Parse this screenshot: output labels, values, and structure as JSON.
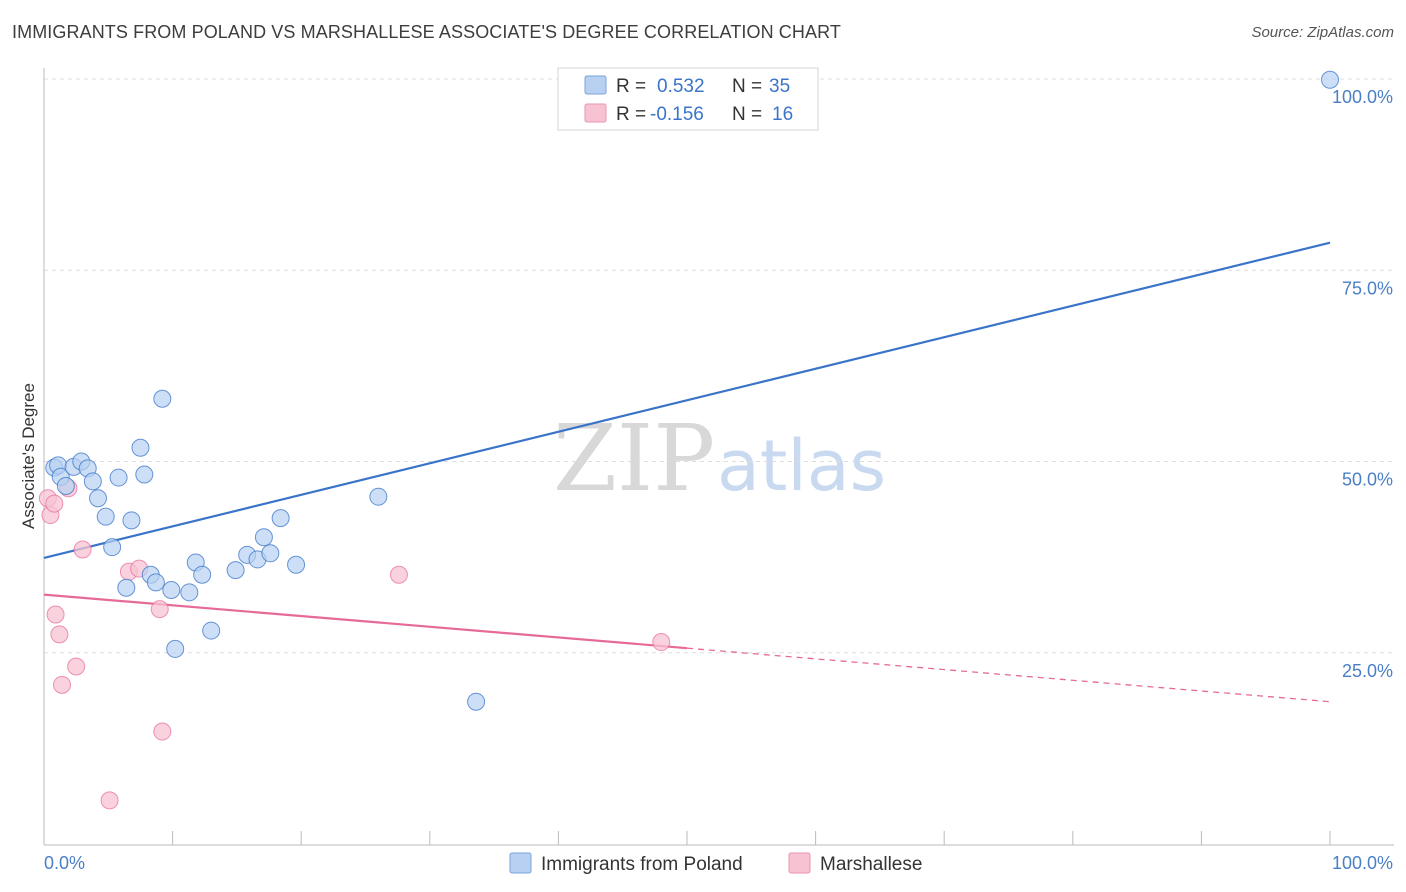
{
  "title": "IMMIGRANTS FROM POLAND VS MARSHALLESE ASSOCIATE'S DEGREE CORRELATION CHART",
  "source": "Source: ZipAtlas.com",
  "watermark": {
    "zip": "ZIP",
    "atlas": "atlas"
  },
  "colors": {
    "blue": "#3a74c8",
    "blue_fill": "#b8d1f2",
    "pink": "#e66a98",
    "pink_fill": "#f7c3d3",
    "tick_text": "#4a7fc6",
    "grid": "#dddddd"
  },
  "legend": {
    "rows": [
      {
        "r_label": "R =",
        "r_value": "0.532",
        "n_label": "N =",
        "n_value": "35"
      },
      {
        "r_label": "R =",
        "r_value": "-0.156",
        "n_label": "N =",
        "n_value": "16"
      }
    ]
  },
  "bottom_legend": [
    "Immigrants from Poland",
    "Marshallese"
  ],
  "chart_data": {
    "type": "scatter",
    "title": "IMMIGRANTS FROM POLAND VS MARSHALLESE ASSOCIATE'S DEGREE CORRELATION CHART",
    "xlabel": "",
    "ylabel": "Associate's Degree",
    "xlim": [
      0,
      100
    ],
    "ylim": [
      0,
      102
    ],
    "x_tick_labels": [
      "0.0%",
      "100.0%"
    ],
    "y_ticks": [
      25,
      50,
      75,
      100
    ],
    "y_tick_labels": [
      "25.0%",
      "50.0%",
      "75.0%",
      "100.0%"
    ],
    "grid": true,
    "series": [
      {
        "name": "Immigrants from Poland",
        "R": 0.532,
        "N": 35,
        "points": [
          {
            "x": 0.8,
            "y": 49.2
          },
          {
            "x": 1.1,
            "y": 49.5
          },
          {
            "x": 1.3,
            "y": 48.0
          },
          {
            "x": 1.7,
            "y": 46.8
          },
          {
            "x": 2.3,
            "y": 49.3
          },
          {
            "x": 2.9,
            "y": 50.0
          },
          {
            "x": 3.4,
            "y": 49.1
          },
          {
            "x": 3.8,
            "y": 47.4
          },
          {
            "x": 4.2,
            "y": 45.2
          },
          {
            "x": 4.8,
            "y": 42.8
          },
          {
            "x": 5.3,
            "y": 38.8
          },
          {
            "x": 5.8,
            "y": 47.9
          },
          {
            "x": 6.4,
            "y": 33.5
          },
          {
            "x": 6.8,
            "y": 42.3
          },
          {
            "x": 7.5,
            "y": 51.8
          },
          {
            "x": 7.8,
            "y": 48.3
          },
          {
            "x": 8.3,
            "y": 35.2
          },
          {
            "x": 8.7,
            "y": 34.2
          },
          {
            "x": 9.2,
            "y": 58.2
          },
          {
            "x": 9.9,
            "y": 33.2
          },
          {
            "x": 10.2,
            "y": 25.5
          },
          {
            "x": 11.3,
            "y": 32.9
          },
          {
            "x": 11.8,
            "y": 36.8
          },
          {
            "x": 12.3,
            "y": 35.2
          },
          {
            "x": 13.0,
            "y": 27.9
          },
          {
            "x": 14.9,
            "y": 35.8
          },
          {
            "x": 15.8,
            "y": 37.8
          },
          {
            "x": 16.6,
            "y": 37.2
          },
          {
            "x": 17.1,
            "y": 40.1
          },
          {
            "x": 17.6,
            "y": 38.0
          },
          {
            "x": 18.4,
            "y": 42.6
          },
          {
            "x": 19.6,
            "y": 36.5
          },
          {
            "x": 26.0,
            "y": 45.4
          },
          {
            "x": 33.6,
            "y": 18.6
          },
          {
            "x": 100.0,
            "y": 99.9
          }
        ],
        "trend": {
          "x1": 0,
          "y1": 37.4,
          "x2": 100,
          "y2": 78.6
        }
      },
      {
        "name": "Marshallese",
        "R": -0.156,
        "N": 16,
        "points": [
          {
            "x": 0.3,
            "y": 45.2
          },
          {
            "x": 0.5,
            "y": 43.0
          },
          {
            "x": 0.8,
            "y": 44.5
          },
          {
            "x": 0.9,
            "y": 30.0
          },
          {
            "x": 1.2,
            "y": 27.4
          },
          {
            "x": 1.4,
            "y": 20.8
          },
          {
            "x": 1.9,
            "y": 46.5
          },
          {
            "x": 2.5,
            "y": 23.2
          },
          {
            "x": 3.0,
            "y": 38.5
          },
          {
            "x": 5.1,
            "y": 5.7
          },
          {
            "x": 6.6,
            "y": 35.6
          },
          {
            "x": 7.4,
            "y": 36.0
          },
          {
            "x": 9.0,
            "y": 30.7
          },
          {
            "x": 9.2,
            "y": 14.7
          },
          {
            "x": 27.6,
            "y": 35.2
          },
          {
            "x": 48.0,
            "y": 26.4
          }
        ],
        "trend": {
          "x1": 0,
          "y1": 32.6,
          "x2": 50,
          "y2": 25.6,
          "dashed_to_x": 100,
          "dashed_to_y": 18.6
        }
      }
    ]
  }
}
